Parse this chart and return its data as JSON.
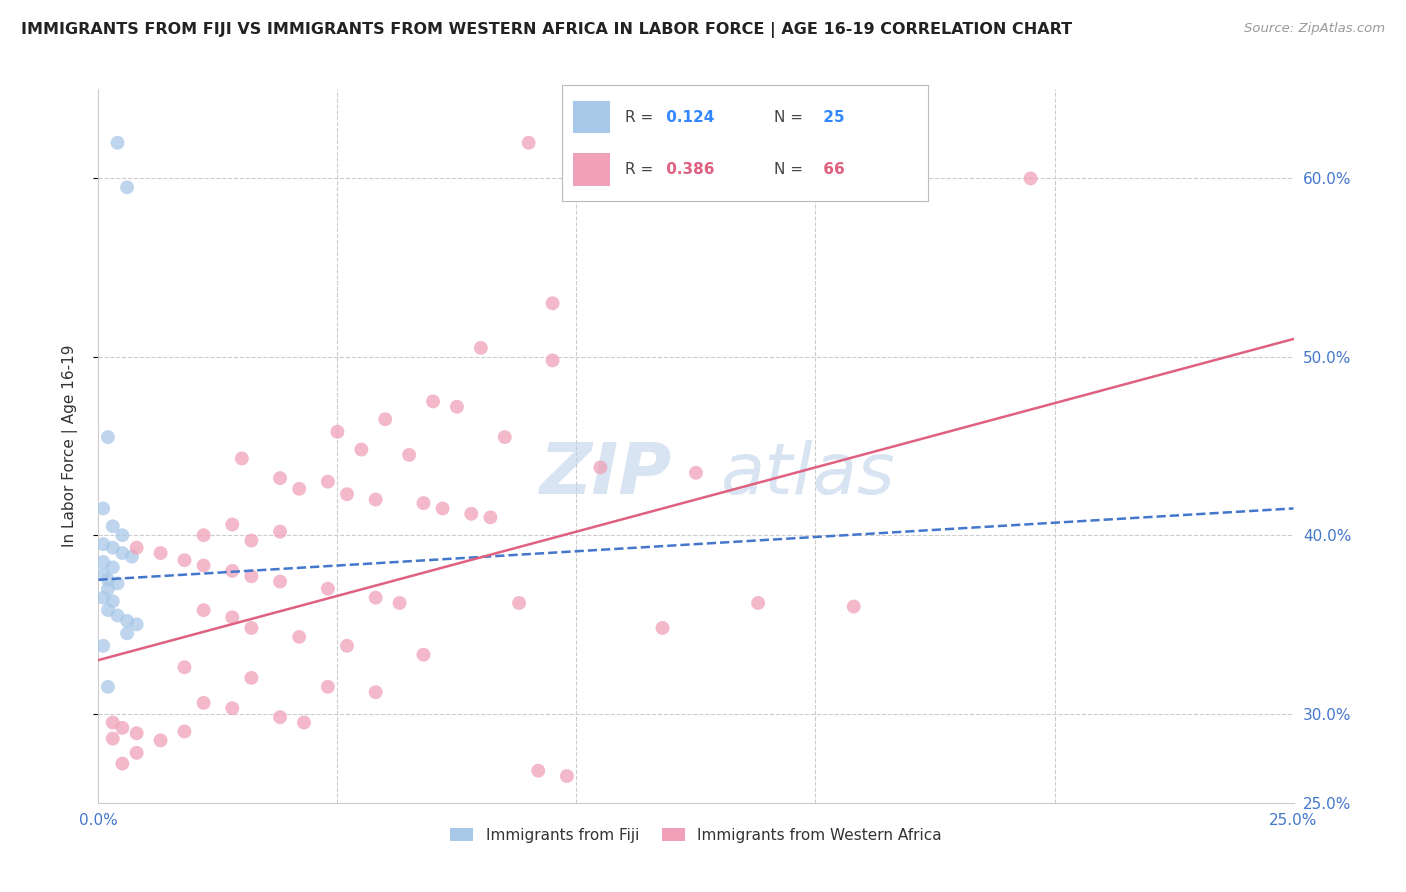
{
  "title": "IMMIGRANTS FROM FIJI VS IMMIGRANTS FROM WESTERN AFRICA IN LABOR FORCE | AGE 16-19 CORRELATION CHART",
  "source": "Source: ZipAtlas.com",
  "ylabel": "In Labor Force | Age 16-19",
  "xlim": [
    0.0,
    0.25
  ],
  "ylim": [
    0.25,
    0.65
  ],
  "fiji_color": "#a8c8e8",
  "wa_color": "#f0a0b8",
  "fiji_R": 0.124,
  "fiji_N": 25,
  "wa_R": 0.386,
  "wa_N": 66,
  "fiji_line_color": "#4477cc",
  "wa_line_color": "#e06080",
  "fiji_line_x": [
    0.0,
    0.25
  ],
  "fiji_line_y": [
    0.375,
    0.415
  ],
  "wa_line_x": [
    0.0,
    0.25
  ],
  "wa_line_y": [
    0.33,
    0.51
  ],
  "fiji_dots": [
    [
      0.004,
      0.62
    ],
    [
      0.006,
      0.595
    ],
    [
      0.002,
      0.455
    ],
    [
      0.001,
      0.415
    ],
    [
      0.003,
      0.405
    ],
    [
      0.005,
      0.4
    ],
    [
      0.001,
      0.395
    ],
    [
      0.003,
      0.393
    ],
    [
      0.005,
      0.39
    ],
    [
      0.001,
      0.385
    ],
    [
      0.003,
      0.382
    ],
    [
      0.007,
      0.388
    ],
    [
      0.001,
      0.378
    ],
    [
      0.002,
      0.375
    ],
    [
      0.004,
      0.373
    ],
    [
      0.002,
      0.37
    ],
    [
      0.001,
      0.365
    ],
    [
      0.003,
      0.363
    ],
    [
      0.002,
      0.358
    ],
    [
      0.004,
      0.355
    ],
    [
      0.006,
      0.352
    ],
    [
      0.008,
      0.35
    ],
    [
      0.001,
      0.338
    ],
    [
      0.002,
      0.315
    ],
    [
      0.006,
      0.345
    ]
  ],
  "wa_dots": [
    [
      0.09,
      0.62
    ],
    [
      0.195,
      0.6
    ],
    [
      0.095,
      0.53
    ],
    [
      0.08,
      0.505
    ],
    [
      0.095,
      0.498
    ],
    [
      0.07,
      0.475
    ],
    [
      0.075,
      0.472
    ],
    [
      0.06,
      0.465
    ],
    [
      0.05,
      0.458
    ],
    [
      0.085,
      0.455
    ],
    [
      0.055,
      0.448
    ],
    [
      0.065,
      0.445
    ],
    [
      0.03,
      0.443
    ],
    [
      0.105,
      0.438
    ],
    [
      0.125,
      0.435
    ],
    [
      0.038,
      0.432
    ],
    [
      0.048,
      0.43
    ],
    [
      0.042,
      0.426
    ],
    [
      0.052,
      0.423
    ],
    [
      0.058,
      0.42
    ],
    [
      0.068,
      0.418
    ],
    [
      0.072,
      0.415
    ],
    [
      0.078,
      0.412
    ],
    [
      0.082,
      0.41
    ],
    [
      0.028,
      0.406
    ],
    [
      0.038,
      0.402
    ],
    [
      0.022,
      0.4
    ],
    [
      0.032,
      0.397
    ],
    [
      0.008,
      0.393
    ],
    [
      0.013,
      0.39
    ],
    [
      0.018,
      0.386
    ],
    [
      0.022,
      0.383
    ],
    [
      0.028,
      0.38
    ],
    [
      0.032,
      0.377
    ],
    [
      0.038,
      0.374
    ],
    [
      0.048,
      0.37
    ],
    [
      0.058,
      0.365
    ],
    [
      0.063,
      0.362
    ],
    [
      0.022,
      0.358
    ],
    [
      0.028,
      0.354
    ],
    [
      0.032,
      0.348
    ],
    [
      0.042,
      0.343
    ],
    [
      0.052,
      0.338
    ],
    [
      0.068,
      0.333
    ],
    [
      0.018,
      0.326
    ],
    [
      0.032,
      0.32
    ],
    [
      0.048,
      0.315
    ],
    [
      0.058,
      0.312
    ],
    [
      0.022,
      0.306
    ],
    [
      0.028,
      0.303
    ],
    [
      0.038,
      0.298
    ],
    [
      0.043,
      0.295
    ],
    [
      0.018,
      0.29
    ],
    [
      0.005,
      0.292
    ],
    [
      0.008,
      0.289
    ],
    [
      0.013,
      0.285
    ],
    [
      0.008,
      0.278
    ],
    [
      0.005,
      0.272
    ],
    [
      0.088,
      0.362
    ],
    [
      0.118,
      0.348
    ],
    [
      0.092,
      0.268
    ],
    [
      0.098,
      0.265
    ],
    [
      0.138,
      0.362
    ],
    [
      0.158,
      0.36
    ],
    [
      0.003,
      0.295
    ],
    [
      0.003,
      0.286
    ]
  ],
  "watermark_zip": "ZIP",
  "watermark_atlas": "atlas",
  "background_color": "#ffffff",
  "grid_color": "#cccccc"
}
